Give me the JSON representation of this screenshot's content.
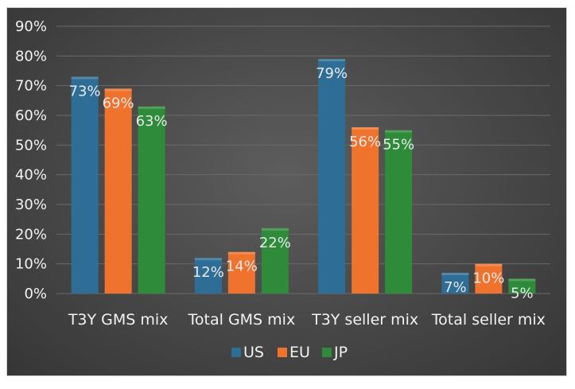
{
  "chart_data": {
    "type": "bar",
    "title": "",
    "xlabel": "",
    "ylabel": "",
    "categories": [
      "T3Y GMS mix",
      "Total GMS mix",
      "T3Y seller mix",
      "Total seller mix"
    ],
    "series": [
      {
        "name": "US",
        "values": [
          73,
          12,
          79,
          7
        ],
        "labels": [
          "73%",
          "12%",
          "79%",
          "7%"
        ],
        "color": "#2e6e96"
      },
      {
        "name": "EU",
        "values": [
          69,
          14,
          56,
          10
        ],
        "labels": [
          "69%",
          "14%",
          "56%",
          "10%"
        ],
        "color": "#f0732d"
      },
      {
        "name": "JP",
        "values": [
          63,
          22,
          55,
          5
        ],
        "labels": [
          "63%",
          "22%",
          "55%",
          "5%"
        ],
        "color": "#2e8b3a"
      }
    ],
    "ylim": [
      0,
      90
    ],
    "yticks": [
      0,
      10,
      20,
      30,
      40,
      50,
      60,
      70,
      80,
      90
    ],
    "ytick_labels": [
      "0%",
      "10%",
      "20%",
      "30%",
      "40%",
      "50%",
      "60%",
      "70%",
      "80%",
      "90%"
    ],
    "grid": true,
    "legend_position": "bottom",
    "background": "#474747",
    "gridline_color": "#6a6a6a",
    "text_color": "#f2f2f2"
  }
}
